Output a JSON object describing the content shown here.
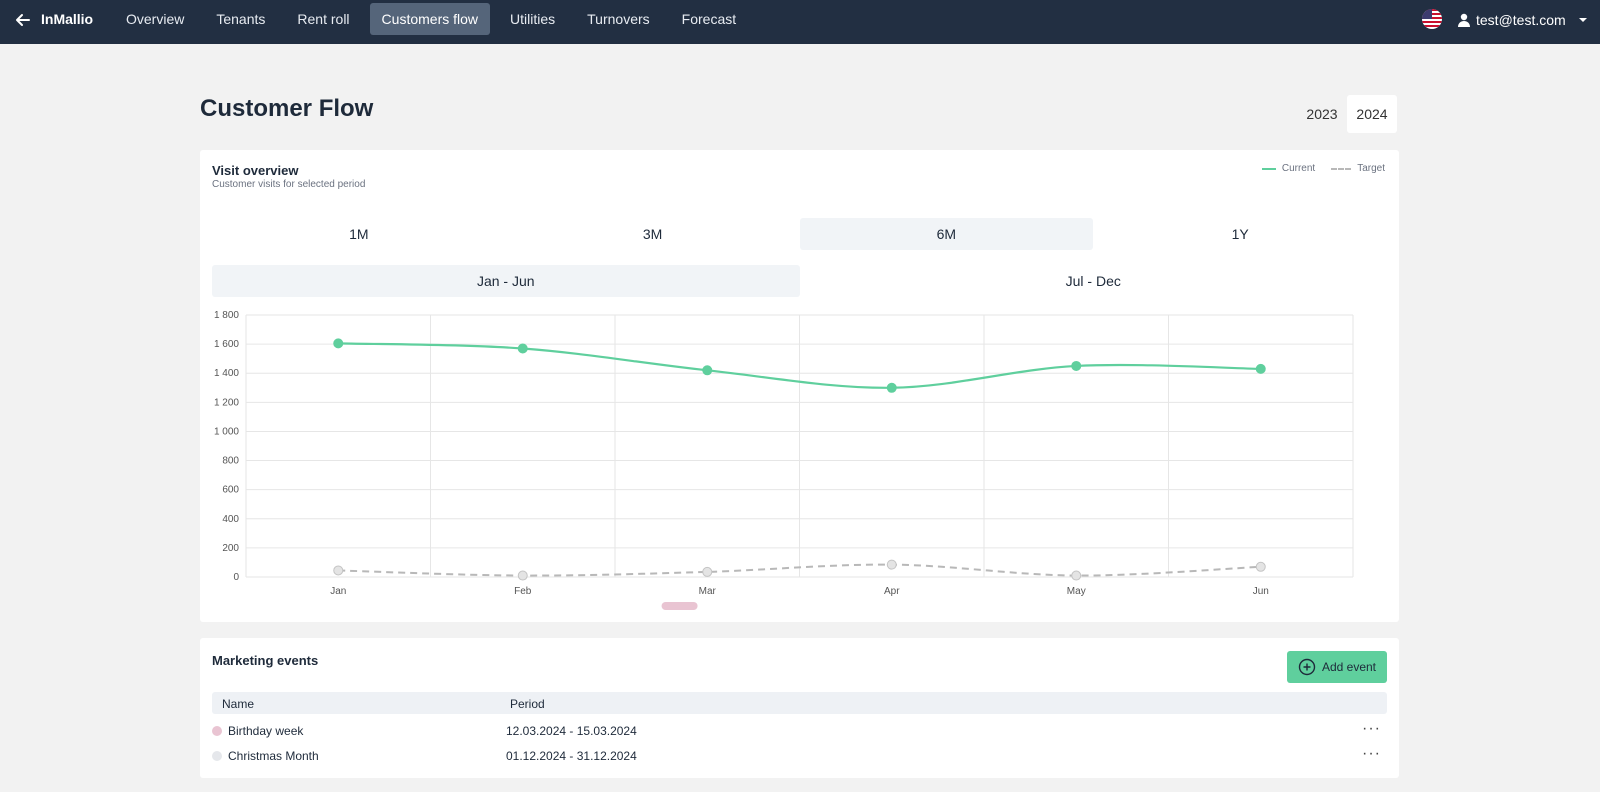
{
  "topbar": {
    "brand": "InMallio",
    "nav": [
      "Overview",
      "Tenants",
      "Rent roll",
      "Customers flow",
      "Utilities",
      "Turnovers",
      "Forecast"
    ],
    "active_nav": "Customers flow",
    "user": "test@test.com",
    "icons": {
      "back": "arrow-left-icon",
      "flag": "us-flag-icon",
      "user": "user-icon",
      "caret": "caret-down-icon"
    }
  },
  "page": {
    "title": "Customer Flow",
    "years": [
      "2023",
      "2024"
    ],
    "active_year": "2024"
  },
  "visit_overview": {
    "title": "Visit overview",
    "subtitle": "Customer visits for selected period",
    "legend": {
      "current": "Current",
      "target": "Target"
    },
    "ranges": [
      "1M",
      "3M",
      "6M",
      "1Y"
    ],
    "active_range": "6M",
    "halves": [
      "Jan - Jun",
      "Jul - Dec"
    ],
    "active_half": "Jan - Jun"
  },
  "chart_data": {
    "type": "line",
    "x": [
      "Jan",
      "Feb",
      "Mar",
      "Apr",
      "May",
      "Jun"
    ],
    "ylim": [
      0,
      1800
    ],
    "yticks": [
      0,
      200,
      400,
      600,
      800,
      1000,
      1200,
      1400,
      1600,
      1800
    ],
    "ytick_labels": [
      "0",
      "200",
      "400",
      "600",
      "800",
      "1 000",
      "1 200",
      "1 400",
      "1 600",
      "1 800"
    ],
    "grid": true,
    "legend_position": "top-right",
    "series": [
      {
        "name": "Current",
        "values": [
          1605,
          1570,
          1420,
          1300,
          1450,
          1430
        ],
        "color": "#5fcf9d",
        "style": "solid"
      },
      {
        "name": "Target",
        "values": [
          45,
          10,
          35,
          85,
          10,
          70
        ],
        "color": "#b8b8b8",
        "style": "dashed"
      }
    ],
    "event_marker": {
      "between": [
        "Feb",
        "Mar"
      ],
      "position": 0.85,
      "color": "#e9c4d2"
    }
  },
  "marketing_events": {
    "title": "Marketing events",
    "add_label": "Add event",
    "columns": {
      "name": "Name",
      "period": "Period"
    },
    "rows": [
      {
        "name": "Birthday week",
        "period": "12.03.2024 - 15.03.2024",
        "color": "#e9c4d2"
      },
      {
        "name": "Christmas Month",
        "period": "01.12.2024 - 31.12.2024",
        "color": "#e5e7eb"
      }
    ],
    "more_label": "···"
  }
}
